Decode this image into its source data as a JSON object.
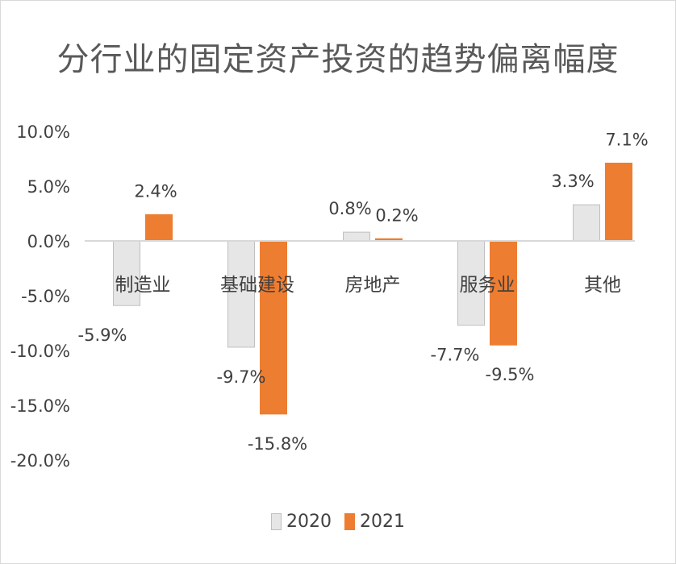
{
  "chart_data": {
    "type": "bar",
    "title": "分行业的固定资产投资的趋势偏离幅度",
    "categories": [
      "制造业",
      "基础建设",
      "房地产",
      "服务业",
      "其他"
    ],
    "series": [
      {
        "name": "2020",
        "values": [
          -5.9,
          -9.7,
          0.8,
          -7.7,
          3.3
        ],
        "labels": [
          "-5.9%",
          "-9.7%",
          "0.8%",
          "-7.7%",
          "3.3%"
        ],
        "color": "#e7e6e6",
        "stroke": "#bfbfbf"
      },
      {
        "name": "2021",
        "values": [
          2.4,
          -15.8,
          0.2,
          -9.5,
          7.1
        ],
        "labels": [
          "2.4%",
          "-15.8%",
          "0.2%",
          "-9.5%",
          "7.1%"
        ],
        "color": "#ed7d31",
        "stroke": "#ed7d31"
      }
    ],
    "ylim": [
      -20,
      10
    ],
    "yticks": [
      "10.0%",
      "5.0%",
      "0.0%",
      "-5.0%",
      "-10.0%",
      "-15.0%",
      "-20.0%"
    ],
    "ytick_values": [
      10,
      5,
      0,
      -5,
      -10,
      -15,
      -20
    ],
    "xlabel": "",
    "ylabel": "",
    "grid": false,
    "legend_position": "bottom"
  }
}
